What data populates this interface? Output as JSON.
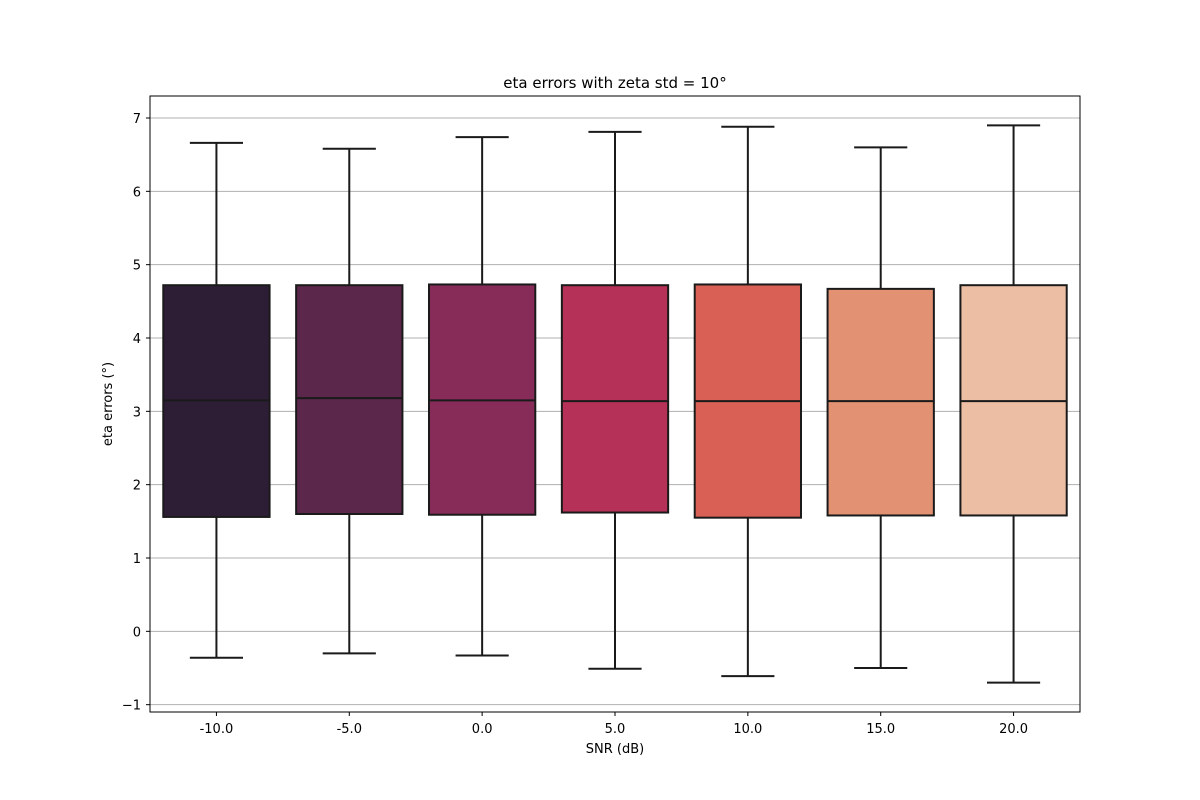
{
  "chart_data": {
    "type": "box",
    "title": "eta errors with zeta std = 10°",
    "xlabel": "SNR (dB)",
    "ylabel": "eta errors (°)",
    "categories": [
      "-10.0",
      "-5.0",
      "0.0",
      "5.0",
      "10.0",
      "15.0",
      "20.0"
    ],
    "ylim": [
      -1.1,
      7.3
    ],
    "yticks": [
      -1,
      0,
      1,
      2,
      3,
      4,
      5,
      6,
      7
    ],
    "grid": "y",
    "boxes": [
      {
        "category": "-10.0",
        "whisker_low": -0.36,
        "q1": 1.56,
        "median": 3.15,
        "q3": 4.72,
        "whisker_high": 6.66,
        "color": "#2d1e36"
      },
      {
        "category": "-5.0",
        "whisker_low": -0.3,
        "q1": 1.6,
        "median": 3.18,
        "q3": 4.72,
        "whisker_high": 6.58,
        "color": "#5b274b"
      },
      {
        "category": "0.0",
        "whisker_low": -0.33,
        "q1": 1.59,
        "median": 3.15,
        "q3": 4.73,
        "whisker_high": 6.74,
        "color": "#872b59"
      },
      {
        "category": "5.0",
        "whisker_low": -0.51,
        "q1": 1.62,
        "median": 3.14,
        "q3": 4.72,
        "whisker_high": 6.81,
        "color": "#b53157"
      },
      {
        "category": "10.0",
        "whisker_low": -0.61,
        "q1": 1.55,
        "median": 3.14,
        "q3": 4.73,
        "whisker_high": 6.88,
        "color": "#d86055"
      },
      {
        "category": "15.0",
        "whisker_low": -0.5,
        "q1": 1.58,
        "median": 3.14,
        "q3": 4.67,
        "whisker_high": 6.6,
        "color": "#e29272"
      },
      {
        "category": "20.0",
        "whisker_low": -0.7,
        "q1": 1.58,
        "median": 3.14,
        "q3": 4.72,
        "whisker_high": 6.9,
        "color": "#ecbfa5"
      }
    ]
  }
}
